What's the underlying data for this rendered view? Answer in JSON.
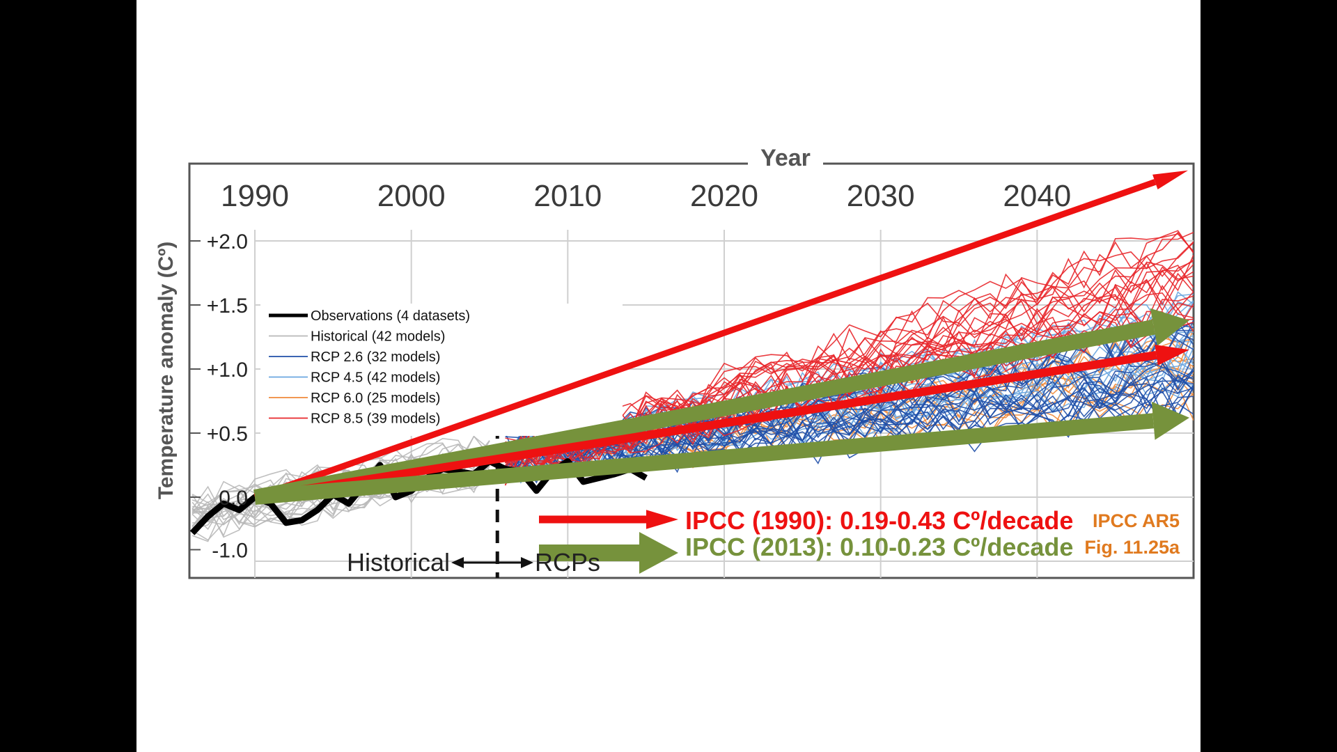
{
  "colors": {
    "observations": "#000000",
    "historical": "#b8b8b8",
    "rcp26": "#1f4fa8",
    "rcp45": "#6aa6e0",
    "rcp60": "#f08a3a",
    "rcp85": "#e8262a",
    "ipcc1990": "#ee1111",
    "ipcc2013": "#76923c",
    "source": "#e07a1f"
  },
  "chart_data": {
    "type": "line",
    "xlabel": "Year",
    "ylabel": "Temperature anomaly (Cº)",
    "xlim": [
      1986,
      2050
    ],
    "ylim": [
      -1.05,
      2.55
    ],
    "x_ticks": [
      "1990",
      "2000",
      "2010",
      "2020",
      "2030",
      "2040"
    ],
    "y_ticks": [
      "+2.0",
      "+1.5",
      "+1.0",
      "+0.5",
      "0.0",
      "-1.0"
    ],
    "grid": true,
    "legend_position": "upper-left",
    "legend": [
      "Observations (4 datasets)",
      "Historical (42 models)",
      "RCP 2.6 (32 models)",
      "RCP 4.5 (42 models)",
      "RCP 6.0 (25 models)",
      "RCP 8.5 (39 models)"
    ],
    "divider_year": 2005.5,
    "divider_labels": {
      "left": "Historical",
      "right": "RCPs"
    },
    "series": [
      {
        "name": "Observations (4 datasets)",
        "x": [
          1986,
          1987,
          1988,
          1989,
          1990,
          1991,
          1992,
          1993,
          1994,
          1995,
          1996,
          1997,
          1998,
          1999,
          2000,
          2001,
          2002,
          2003,
          2004,
          2005,
          2006,
          2007,
          2008,
          2009,
          2010,
          2011,
          2012,
          2013,
          2014,
          2015
        ],
        "y": [
          -0.28,
          -0.15,
          -0.05,
          -0.1,
          0.0,
          -0.05,
          -0.2,
          -0.18,
          -0.1,
          0.02,
          -0.05,
          0.1,
          0.25,
          0.0,
          0.05,
          0.15,
          0.22,
          0.2,
          0.18,
          0.28,
          0.22,
          0.2,
          0.05,
          0.2,
          0.28,
          0.12,
          0.15,
          0.18,
          0.22,
          0.15
        ]
      },
      {
        "name": "Historical (42 models)",
        "x_range": [
          1986,
          2005
        ],
        "center_start": -0.15,
        "center_end": 0.3,
        "spread": 0.22
      },
      {
        "name": "RCP 2.6 (32 models)",
        "x_range": [
          2006,
          2050
        ],
        "center_start": 0.3,
        "center_end": 0.95,
        "spread": 0.35
      },
      {
        "name": "RCP 4.5 (42 models)",
        "x_range": [
          2006,
          2050
        ],
        "center_start": 0.3,
        "center_end": 1.2,
        "spread": 0.35
      },
      {
        "name": "RCP 6.0 (25 models)",
        "x_range": [
          2006,
          2050
        ],
        "center_start": 0.3,
        "center_end": 1.05,
        "spread": 0.3
      },
      {
        "name": "RCP 8.5 (39 models)",
        "x_range": [
          2006,
          2050
        ],
        "center_start": 0.3,
        "center_end": 1.75,
        "spread": 0.38
      }
    ],
    "trend_arrows": [
      {
        "label": "IPCC (1990)",
        "color": "ipcc1990",
        "x0": 1990,
        "y0": 0.0,
        "x1": 2050,
        "y1": 2.55
      },
      {
        "label": "IPCC (1990)",
        "color": "ipcc1990",
        "x0": 1990,
        "y0": 0.0,
        "x1": 2050,
        "y1": 1.15
      },
      {
        "label": "IPCC (2013)",
        "color": "ipcc2013",
        "x0": 1990,
        "y0": 0.0,
        "x1": 2050,
        "y1": 1.38
      },
      {
        "label": "IPCC (2013)",
        "color": "ipcc2013",
        "x0": 1990,
        "y0": 0.0,
        "x1": 2050,
        "y1": 0.62
      }
    ],
    "annotations": {
      "ipcc1990": "IPCC (1990): 0.19-0.43 Cº/decade",
      "ipcc2013": "IPCC (2013): 0.10-0.23 Cº/decade",
      "source_line1": "IPCC AR5",
      "source_line2": "Fig. 11.25a"
    }
  }
}
